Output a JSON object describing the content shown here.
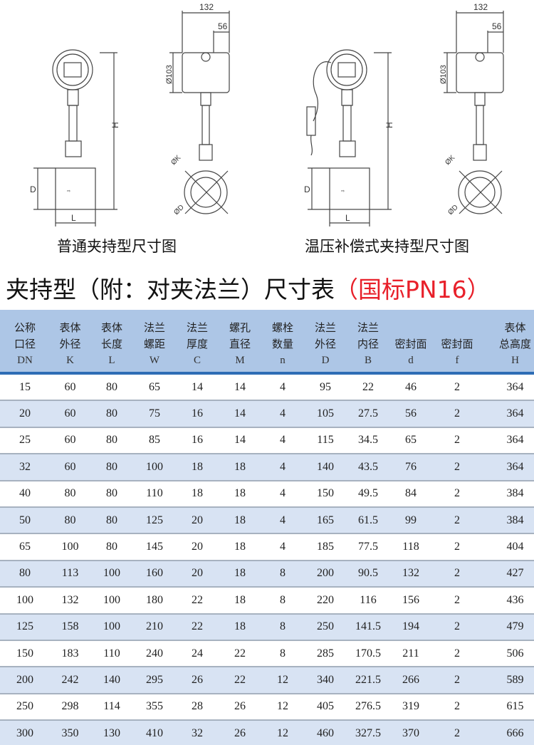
{
  "drawings": [
    {
      "caption": "普通夹持型尺寸图",
      "labels": {
        "width": "132",
        "offset": "56",
        "head_dia": "Ø103",
        "height": "H",
        "body_d": "D",
        "body_l": "L",
        "dia_k": "ØK",
        "dia_d": "ØD"
      }
    },
    {
      "caption": "温压补偿式夹持型尺寸图",
      "labels": {
        "width": "132",
        "offset": "56",
        "head_dia": "Ø103",
        "height": "H",
        "body_d": "D",
        "body_l": "L",
        "dia_k": "ØK",
        "dia_d": "ØD"
      }
    }
  ],
  "title": {
    "main": "夹持型（附：对夹法兰）尺寸表",
    "standard": "（国标PN16）"
  },
  "colors": {
    "header_bg": "#adc6e6",
    "header_rule": "#2e6db5",
    "alt_row": "#d8e3f3",
    "accent_red": "#e8202a"
  },
  "table": {
    "columns": [
      {
        "line1": "公称",
        "line2": "口径",
        "symbol": "DN"
      },
      {
        "line1": "表体",
        "line2": "外径",
        "symbol": "K"
      },
      {
        "line1": "表体",
        "line2": "长度",
        "symbol": "L"
      },
      {
        "line1": "法兰",
        "line2": "螺距",
        "symbol": "W"
      },
      {
        "line1": "法兰",
        "line2": "厚度",
        "symbol": "C"
      },
      {
        "line1": "螺孔",
        "line2": "直径",
        "symbol": "M"
      },
      {
        "line1": "螺栓",
        "line2": "数量",
        "symbol": "n"
      },
      {
        "line1": "法兰",
        "line2": "外径",
        "symbol": "D"
      },
      {
        "line1": "法兰",
        "line2": "内径",
        "symbol": "B"
      },
      {
        "line1": "",
        "line2": "密封面",
        "symbol": "d"
      },
      {
        "line1": "",
        "line2": "密封面",
        "symbol": "f"
      },
      {
        "line1": "表体",
        "line2": "总高度",
        "symbol": "H"
      }
    ],
    "rows": [
      [
        "15",
        "60",
        "80",
        "65",
        "14",
        "14",
        "4",
        "95",
        "22",
        "46",
        "2",
        "364"
      ],
      [
        "20",
        "60",
        "80",
        "75",
        "16",
        "14",
        "4",
        "105",
        "27.5",
        "56",
        "2",
        "364"
      ],
      [
        "25",
        "60",
        "80",
        "85",
        "16",
        "14",
        "4",
        "115",
        "34.5",
        "65",
        "2",
        "364"
      ],
      [
        "32",
        "60",
        "80",
        "100",
        "18",
        "18",
        "4",
        "140",
        "43.5",
        "76",
        "2",
        "364"
      ],
      [
        "40",
        "80",
        "80",
        "110",
        "18",
        "18",
        "4",
        "150",
        "49.5",
        "84",
        "2",
        "384"
      ],
      [
        "50",
        "80",
        "80",
        "125",
        "20",
        "18",
        "4",
        "165",
        "61.5",
        "99",
        "2",
        "384"
      ],
      [
        "65",
        "100",
        "80",
        "145",
        "20",
        "18",
        "4",
        "185",
        "77.5",
        "118",
        "2",
        "404"
      ],
      [
        "80",
        "113",
        "100",
        "160",
        "20",
        "18",
        "8",
        "200",
        "90.5",
        "132",
        "2",
        "427"
      ],
      [
        "100",
        "132",
        "100",
        "180",
        "22",
        "18",
        "8",
        "220",
        "116",
        "156",
        "2",
        "436"
      ],
      [
        "125",
        "158",
        "100",
        "210",
        "22",
        "18",
        "8",
        "250",
        "141.5",
        "194",
        "2",
        "479"
      ],
      [
        "150",
        "183",
        "110",
        "240",
        "24",
        "22",
        "8",
        "285",
        "170.5",
        "211",
        "2",
        "506"
      ],
      [
        "200",
        "242",
        "140",
        "295",
        "26",
        "22",
        "12",
        "340",
        "221.5",
        "266",
        "2",
        "589"
      ],
      [
        "250",
        "298",
        "114",
        "355",
        "28",
        "26",
        "12",
        "405",
        "276.5",
        "319",
        "2",
        "615"
      ],
      [
        "300",
        "350",
        "130",
        "410",
        "32",
        "26",
        "12",
        "460",
        "327.5",
        "370",
        "2",
        "666"
      ]
    ]
  }
}
